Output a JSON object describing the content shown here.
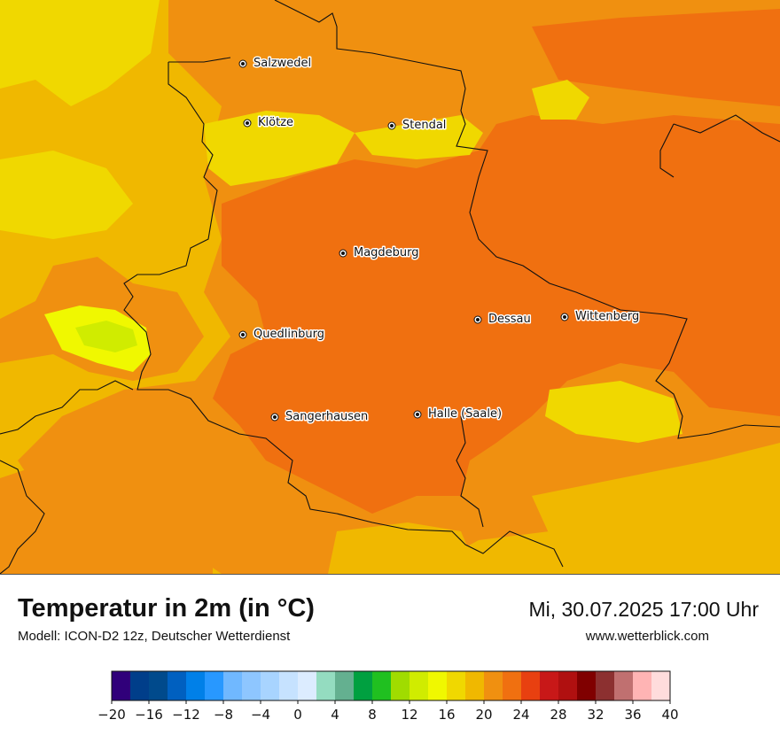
{
  "map": {
    "cities": [
      {
        "id": "salzwedel",
        "name": "Salzwedel"
      },
      {
        "id": "kloetze",
        "name": "Klötze"
      },
      {
        "id": "stendal",
        "name": "Stendal"
      },
      {
        "id": "magdeburg",
        "name": "Magdeburg"
      },
      {
        "id": "dessau",
        "name": "Dessau"
      },
      {
        "id": "wittenberg",
        "name": "Wittenberg"
      },
      {
        "id": "quedlinburg",
        "name": "Quedlinburg"
      },
      {
        "id": "sangerhausen",
        "name": "Sangerhausen"
      },
      {
        "id": "halle",
        "name": "Halle (Saale)"
      }
    ]
  },
  "footer": {
    "title": "Temperatur in 2m (in °C)",
    "subtitle": "Modell: ICON-D2 12z, Deutscher Wetterdienst",
    "datetime": "Mi, 30.07.2025 17:00 Uhr",
    "site": "www.wetterblick.com"
  },
  "legend": {
    "min": -20,
    "max": 40,
    "ticks": [
      "−20",
      "−16",
      "−12",
      "−8",
      "−4",
      "0",
      "4",
      "8",
      "12",
      "16",
      "20",
      "24",
      "28",
      "32",
      "36",
      "40"
    ],
    "colors": [
      "#30007a",
      "#003e8a",
      "#004a8c",
      "#0060c0",
      "#0080e8",
      "#2898ff",
      "#70b8ff",
      "#8ec6ff",
      "#a8d4ff",
      "#c6e2ff",
      "#dcecff",
      "#94dcc0",
      "#64b090",
      "#00a040",
      "#20c020",
      "#a0dc00",
      "#d0ec00",
      "#f0f800",
      "#f0d800",
      "#f0b800",
      "#f09010",
      "#f07010",
      "#e84010",
      "#c81818",
      "#b01010",
      "#800000",
      "#8c3030",
      "#c07070",
      "#ffb4b4",
      "#ffdcdc"
    ],
    "map_palette": {
      "yellow_light": "#f0d800",
      "yellow": "#f0b800",
      "orange_light": "#f09010",
      "orange": "#f07010",
      "green_yellow": "#d0ec00",
      "yellow_green": "#f0f800"
    }
  }
}
